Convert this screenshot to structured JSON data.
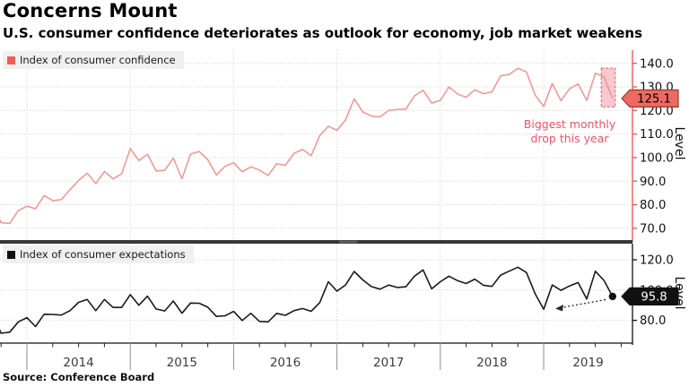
{
  "header": {
    "title": "Concerns Mount",
    "subtitle": "U.S. consumer confidence deteriorates as outlook for economy, job market weakens"
  },
  "source": "Source: Conference Board",
  "colors": {
    "confidence_line": "#f19490",
    "confidence_axis": "#e8544c",
    "confidence_badge_fill": "#ec6a62",
    "confidence_badge_border": "#9e352c",
    "annotation_red": "#ee5367",
    "highlight_fill": "#f0919c",
    "highlight_border": "#da616d",
    "expectations_line": "#1a1a1a",
    "grid": "#d2d2d2",
    "separator": "#383838",
    "legend_bg": "#f0f0f0"
  },
  "chart_data": [
    {
      "type": "line",
      "legend_label": "Index of consumer confidence",
      "ylabel": "Level",
      "frequency": "monthly",
      "x_start": "2013-09",
      "x_end": "2019-09",
      "x_tick_labels": [
        "2014",
        "2015",
        "2016",
        "2017",
        "2018",
        "2019"
      ],
      "y_tick_values": [
        140,
        130,
        120,
        110,
        100,
        90,
        80,
        70
      ],
      "y_tick_labels": [
        "140.0",
        "130.0",
        "120.0",
        "110.0",
        "100.0",
        "90.0",
        "80.0",
        "70.0"
      ],
      "ylim": [
        65,
        145.5
      ],
      "grid": "dotted",
      "end_label": "125.1",
      "annotation": "Biggest monthly drop this year",
      "highlight_last_n_points": 2,
      "series": [
        {
          "name": "Index of consumer confidence",
          "values": [
            80.2,
            72.4,
            72.0,
            77.5,
            79.4,
            78.3,
            83.9,
            81.7,
            82.2,
            86.4,
            90.3,
            93.4,
            89.0,
            94.1,
            91.0,
            93.1,
            103.8,
            98.8,
            101.4,
            94.3,
            94.6,
            99.8,
            91.0,
            101.5,
            102.6,
            99.1,
            92.6,
            96.3,
            97.8,
            94.0,
            96.1,
            94.7,
            92.4,
            97.4,
            96.7,
            101.8,
            103.5,
            100.8,
            109.4,
            113.3,
            111.6,
            116.1,
            124.9,
            119.4,
            117.6,
            117.3,
            120.0,
            120.4,
            120.6,
            126.2,
            128.6,
            123.1,
            124.3,
            130.0,
            127.0,
            125.6,
            128.8,
            127.1,
            127.9,
            134.7,
            135.3,
            137.9,
            136.4,
            126.6,
            121.7,
            131.4,
            124.2,
            129.2,
            131.3,
            124.3,
            135.8,
            134.2,
            125.1
          ]
        }
      ]
    },
    {
      "type": "line",
      "legend_label": "Index of consumer expectations",
      "ylabel": "Level",
      "frequency": "monthly",
      "x_start": "2013-09",
      "x_end": "2019-09",
      "x_tick_labels": [
        "2014",
        "2015",
        "2016",
        "2017",
        "2018",
        "2019"
      ],
      "y_tick_values": [
        120,
        100,
        80
      ],
      "y_tick_labels": [
        "120.0",
        "100.0",
        "80.0"
      ],
      "ylim": [
        58,
        129.5
      ],
      "grid": "dotted",
      "end_label": "95.8",
      "end_point_marker": true,
      "pointer_trail_to_low": true,
      "series": [
        {
          "name": "Index of consumer expectations",
          "values": [
            84.7,
            71.5,
            72.2,
            79.0,
            81.8,
            75.9,
            84.0,
            83.9,
            83.5,
            86.4,
            91.9,
            93.8,
            86.4,
            93.8,
            88.5,
            88.5,
            97.0,
            90.0,
            96.0,
            87.5,
            86.2,
            92.8,
            84.7,
            91.4,
            91.3,
            88.7,
            82.6,
            83.0,
            85.9,
            79.9,
            84.7,
            79.3,
            79.0,
            84.6,
            83.3,
            86.4,
            87.8,
            86.0,
            91.7,
            105.5,
            99.3,
            103.4,
            112.3,
            106.7,
            102.3,
            100.6,
            103.3,
            101.7,
            102.2,
            109.2,
            113.3,
            100.8,
            105.5,
            109.2,
            106.2,
            104.3,
            107.2,
            103.2,
            102.4,
            109.9,
            112.5,
            115.1,
            111.6,
            97.7,
            87.3,
            103.4,
            99.8,
            102.7,
            105.0,
            94.1,
            112.4,
            106.4,
            95.8
          ]
        }
      ]
    }
  ]
}
